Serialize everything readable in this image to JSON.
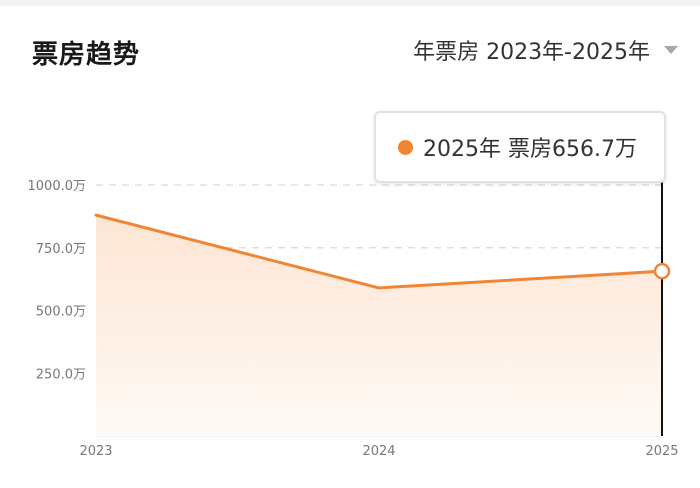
{
  "header": {
    "title": "票房趋势",
    "range_label": "年票房 2023年-2025年"
  },
  "tooltip": {
    "text": "2025年 票房656.7万"
  },
  "colors": {
    "line": "#f08536",
    "area_top": "#fde5d3",
    "area_bottom": "#fffaf6",
    "grid": "#d9d9d9",
    "axis_text": "#777777",
    "cursor": "#111111"
  },
  "chart_data": {
    "type": "area",
    "x": [
      "2023",
      "2024",
      "2025"
    ],
    "series": [
      {
        "values": [
          880,
          590,
          656.7
        ]
      }
    ],
    "y_ticks": [
      {
        "value": 1000,
        "label": "1000.0万"
      },
      {
        "value": 750,
        "label": "750.0万"
      },
      {
        "value": 500,
        "label": "500.0万"
      },
      {
        "value": 250,
        "label": "250.0万"
      }
    ],
    "ylim": [
      0,
      1000
    ],
    "grid": "horizontal-dashed",
    "highlighted_index": 2
  }
}
